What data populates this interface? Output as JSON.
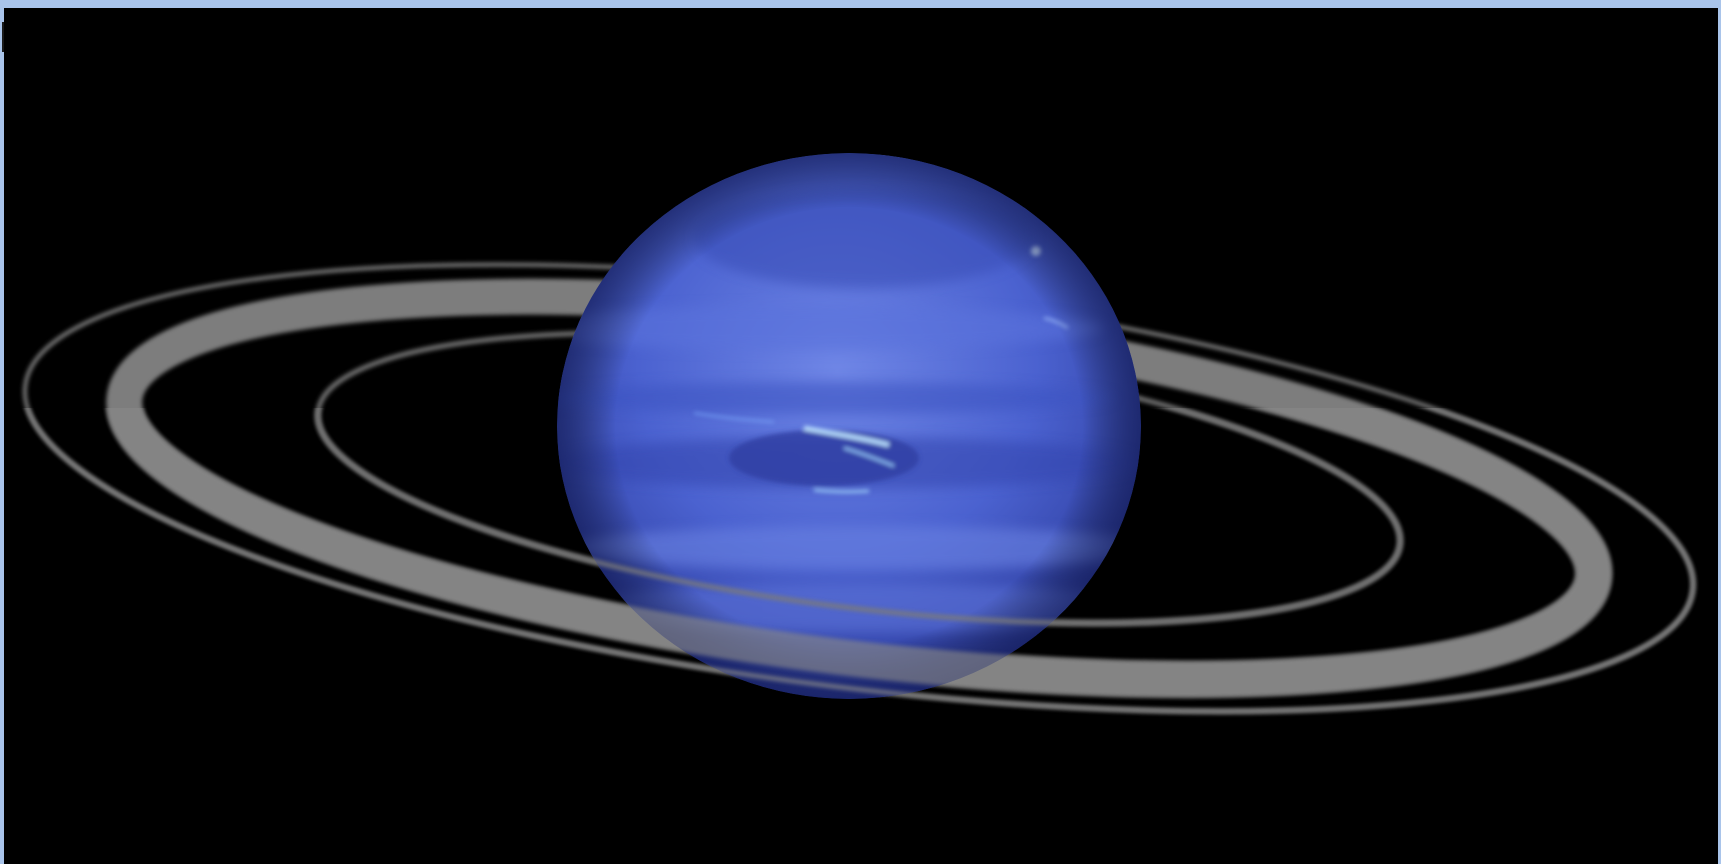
{
  "scene": {
    "subject": "ringed-blue-planet",
    "colors": {
      "frame": "#a9c4ea",
      "space": "#000000",
      "planet_light": "#6f86e6",
      "planet_mid": "#4b62d0",
      "planet_dark": "#2b3a9a",
      "ring": "#8a8a8a",
      "storm_highlight": "#bfe6ff"
    }
  }
}
